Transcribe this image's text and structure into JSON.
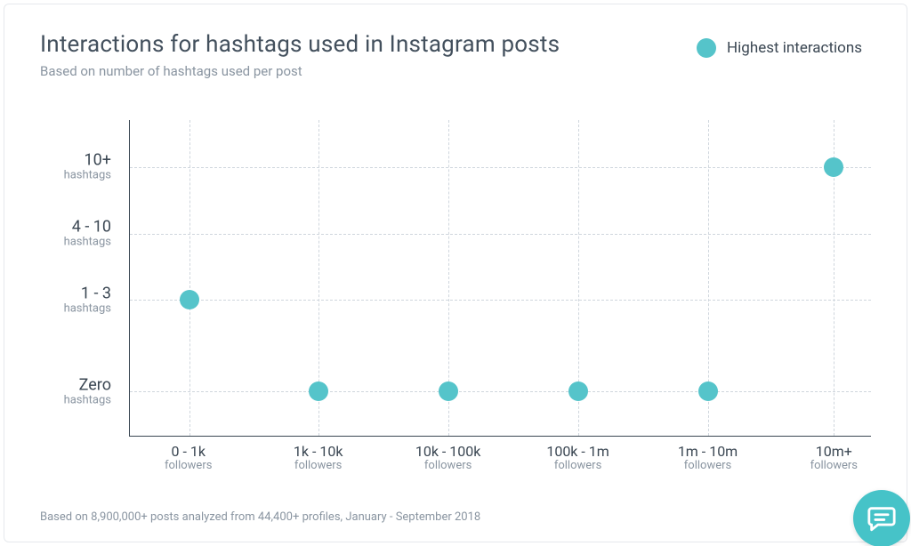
{
  "title": "Interactions for hashtags used in Instagram posts",
  "subtitle": "Based on number of hashtags used per post",
  "legend": {
    "label": "Highest interactions",
    "color": "#55c4ca"
  },
  "chart": {
    "type": "scatter",
    "background_color": "#ffffff",
    "axis_color": "#3b4753",
    "grid_color": "#cfd6dd",
    "grid_dash": "4,4",
    "axis_line_width": 1.5,
    "point_radius": 11,
    "point_color": "#55c4ca",
    "title_fontsize": 26,
    "subtitle_fontsize": 15,
    "axis_label_big_fontsize": 17,
    "axis_label_small_fontsize": 13,
    "y_categories": [
      {
        "main": "Zero",
        "sub": "hashtags"
      },
      {
        "main": "1 - 3",
        "sub": "hashtags"
      },
      {
        "main": "4 - 10",
        "sub": "hashtags"
      },
      {
        "main": "10+",
        "sub": "hashtags"
      }
    ],
    "y_positions_pct": [
      86,
      57,
      36,
      15
    ],
    "x_categories": [
      {
        "main": "0 - 1k",
        "sub": "followers"
      },
      {
        "main": "1k - 10k",
        "sub": "followers"
      },
      {
        "main": "10k - 100k",
        "sub": "followers"
      },
      {
        "main": "100k - 1m",
        "sub": "followers"
      },
      {
        "main": "1m - 10m",
        "sub": "followers"
      },
      {
        "main": "10m+",
        "sub": "followers"
      }
    ],
    "x_positions_pct": [
      8,
      25.5,
      43,
      60.5,
      78,
      95
    ],
    "points": [
      {
        "x_index": 0,
        "y_index": 1
      },
      {
        "x_index": 1,
        "y_index": 0
      },
      {
        "x_index": 2,
        "y_index": 0
      },
      {
        "x_index": 3,
        "y_index": 0
      },
      {
        "x_index": 4,
        "y_index": 0
      },
      {
        "x_index": 5,
        "y_index": 3
      }
    ]
  },
  "footnote": "Based on 8,900,000+ posts analyzed from 44,400+ profiles, January - September 2018",
  "chat_color": "#46c3c8"
}
